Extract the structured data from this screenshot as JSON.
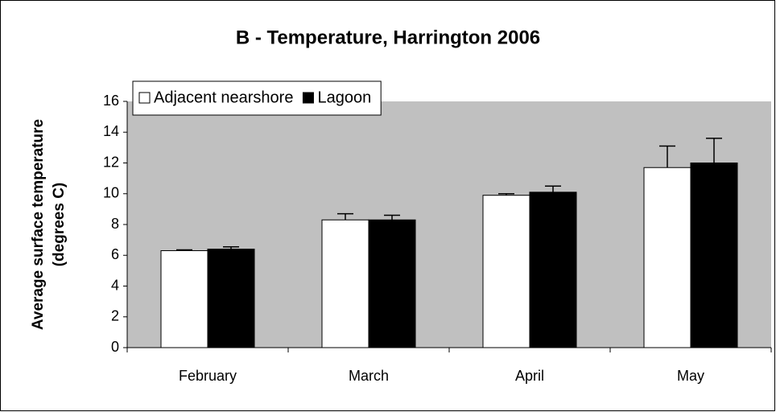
{
  "chart_data": {
    "type": "bar",
    "title": "B - Temperature, Harrington 2006",
    "y_label": [
      "Average surface temperature",
      "(degrees C)"
    ],
    "categories": [
      "February",
      "March",
      "April",
      "May"
    ],
    "series": [
      {
        "name": "Adjacent nearshore",
        "color": "#ffffff",
        "values": [
          6.3,
          8.3,
          9.9,
          11.7
        ],
        "errors": [
          0.05,
          0.4,
          0.1,
          1.4
        ]
      },
      {
        "name": "Lagoon",
        "color": "#000000",
        "values": [
          6.4,
          8.3,
          10.1,
          12.0
        ],
        "errors": [
          0.15,
          0.3,
          0.4,
          1.6
        ]
      }
    ],
    "ylim": [
      0,
      16
    ],
    "yticks": [
      0,
      2,
      4,
      6,
      8,
      10,
      12,
      14,
      16
    ],
    "plot_background": "#c0c0c0",
    "legend": "top-left"
  }
}
